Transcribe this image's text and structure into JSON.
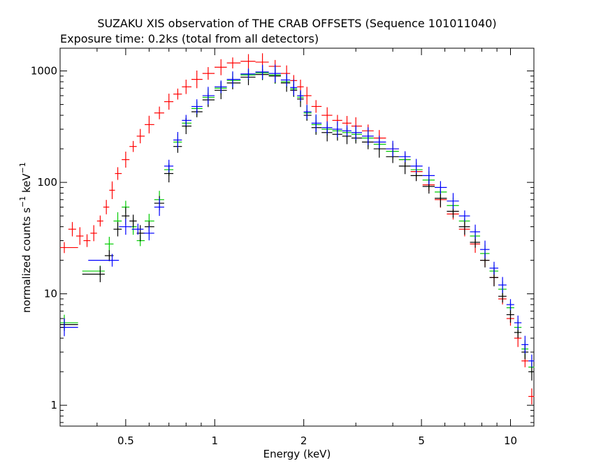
{
  "chart_data": {
    "type": "scatter",
    "title": "SUZAKU XIS observation of THE CRAB OFFSETS (Sequence 101011040)",
    "subtitle": "Exposure time: 0.2ks (total from all detectors)",
    "xlabel": "Energy (keV)",
    "ylabel_main": "normalized counts s",
    "ylabel_exp1": "−1",
    "ylabel_mid": " keV",
    "ylabel_exp2": "−1",
    "x_scale": "log",
    "y_scale": "log",
    "xlim": [
      0.3,
      12
    ],
    "ylim": [
      0.65,
      1600
    ],
    "x_ticks": [
      {
        "value": 0.5,
        "label": "0.5"
      },
      {
        "value": 1,
        "label": "1"
      },
      {
        "value": 2,
        "label": "2"
      },
      {
        "value": 5,
        "label": "5"
      },
      {
        "value": 10,
        "label": "10"
      }
    ],
    "y_ticks": [
      {
        "value": 1,
        "label": "1"
      },
      {
        "value": 10,
        "label": "10"
      },
      {
        "value": 100,
        "label": "100"
      },
      {
        "value": 1000,
        "label": "1000"
      }
    ],
    "grid": false,
    "series": [
      {
        "color": "#ff0000",
        "points": [
          [
            0.31,
            26
          ],
          [
            0.33,
            38
          ],
          [
            0.35,
            33
          ],
          [
            0.37,
            30
          ],
          [
            0.39,
            35
          ],
          [
            0.41,
            45
          ],
          [
            0.43,
            60
          ],
          [
            0.45,
            85
          ],
          [
            0.47,
            120
          ],
          [
            0.5,
            160
          ],
          [
            0.53,
            210
          ],
          [
            0.56,
            260
          ],
          [
            0.6,
            330
          ],
          [
            0.65,
            420
          ],
          [
            0.7,
            530
          ],
          [
            0.75,
            620
          ],
          [
            0.8,
            720
          ],
          [
            0.87,
            840
          ],
          [
            0.95,
            950
          ],
          [
            1.05,
            1080
          ],
          [
            1.15,
            1180
          ],
          [
            1.3,
            1220
          ],
          [
            1.45,
            1200
          ],
          [
            1.6,
            1100
          ],
          [
            1.75,
            950
          ],
          [
            1.85,
            820
          ],
          [
            1.95,
            720
          ],
          [
            2.05,
            600
          ],
          [
            2.2,
            480
          ],
          [
            2.4,
            400
          ],
          [
            2.6,
            360
          ],
          [
            2.8,
            340
          ],
          [
            3.0,
            320
          ],
          [
            3.3,
            290
          ],
          [
            3.6,
            250
          ],
          [
            4.0,
            200
          ],
          [
            4.4,
            160
          ],
          [
            4.8,
            125
          ],
          [
            5.3,
            95
          ],
          [
            5.8,
            70
          ],
          [
            6.4,
            52
          ],
          [
            7.0,
            38
          ],
          [
            7.6,
            28
          ],
          [
            8.2,
            20
          ],
          [
            8.8,
            14
          ],
          [
            9.4,
            9
          ],
          [
            10.0,
            6
          ],
          [
            10.6,
            4
          ],
          [
            11.2,
            2.5
          ],
          [
            11.8,
            1.2
          ]
        ]
      },
      {
        "color": "#00cc00",
        "points": [
          [
            0.31,
            5.5
          ],
          [
            0.41,
            16
          ],
          [
            0.44,
            28
          ],
          [
            0.47,
            45
          ],
          [
            0.5,
            60
          ],
          [
            0.53,
            40
          ],
          [
            0.56,
            30
          ],
          [
            0.6,
            45
          ],
          [
            0.65,
            70
          ],
          [
            0.7,
            130
          ],
          [
            0.75,
            230
          ],
          [
            0.8,
            340
          ],
          [
            0.87,
            460
          ],
          [
            0.95,
            580
          ],
          [
            1.05,
            700
          ],
          [
            1.15,
            820
          ],
          [
            1.3,
            920
          ],
          [
            1.45,
            960
          ],
          [
            1.6,
            920
          ],
          [
            1.75,
            800
          ],
          [
            1.85,
            690
          ],
          [
            1.95,
            580
          ],
          [
            2.05,
            420
          ],
          [
            2.2,
            330
          ],
          [
            2.4,
            300
          ],
          [
            2.6,
            290
          ],
          [
            2.8,
            280
          ],
          [
            3.0,
            270
          ],
          [
            3.3,
            250
          ],
          [
            3.6,
            220
          ],
          [
            4.0,
            190
          ],
          [
            4.4,
            160
          ],
          [
            4.8,
            130
          ],
          [
            5.3,
            105
          ],
          [
            5.8,
            82
          ],
          [
            6.4,
            62
          ],
          [
            7.0,
            45
          ],
          [
            7.6,
            33
          ],
          [
            8.2,
            23
          ],
          [
            8.8,
            16
          ],
          [
            9.4,
            11
          ],
          [
            10.0,
            7.5
          ],
          [
            10.6,
            5
          ],
          [
            11.2,
            3.2
          ],
          [
            11.8,
            2.2
          ]
        ]
      },
      {
        "color": "#000000",
        "points": [
          [
            0.31,
            5.3
          ],
          [
            0.41,
            15
          ],
          [
            0.44,
            22
          ],
          [
            0.47,
            38
          ],
          [
            0.5,
            50
          ],
          [
            0.53,
            45
          ],
          [
            0.56,
            35
          ],
          [
            0.6,
            40
          ],
          [
            0.65,
            65
          ],
          [
            0.7,
            120
          ],
          [
            0.75,
            210
          ],
          [
            0.8,
            320
          ],
          [
            0.87,
            430
          ],
          [
            0.95,
            550
          ],
          [
            1.05,
            670
          ],
          [
            1.15,
            780
          ],
          [
            1.3,
            880
          ],
          [
            1.45,
            930
          ],
          [
            1.6,
            900
          ],
          [
            1.75,
            780
          ],
          [
            1.85,
            670
          ],
          [
            1.95,
            560
          ],
          [
            2.05,
            400
          ],
          [
            2.2,
            310
          ],
          [
            2.4,
            280
          ],
          [
            2.6,
            270
          ],
          [
            2.8,
            260
          ],
          [
            3.0,
            250
          ],
          [
            3.3,
            230
          ],
          [
            3.6,
            200
          ],
          [
            4.0,
            170
          ],
          [
            4.4,
            140
          ],
          [
            4.8,
            115
          ],
          [
            5.3,
            92
          ],
          [
            5.8,
            72
          ],
          [
            6.4,
            55
          ],
          [
            7.0,
            40
          ],
          [
            7.6,
            29
          ],
          [
            8.2,
            20
          ],
          [
            8.8,
            14
          ],
          [
            9.4,
            9.5
          ],
          [
            10.0,
            6.5
          ],
          [
            10.6,
            4.5
          ],
          [
            11.2,
            3
          ],
          [
            11.8,
            2
          ]
        ]
      },
      {
        "color": "#0000ff",
        "points": [
          [
            0.31,
            5.0
          ],
          [
            0.45,
            20
          ],
          [
            0.5,
            40
          ],
          [
            0.55,
            38
          ],
          [
            0.6,
            35
          ],
          [
            0.65,
            60
          ],
          [
            0.7,
            140
          ],
          [
            0.75,
            240
          ],
          [
            0.8,
            360
          ],
          [
            0.87,
            480
          ],
          [
            0.95,
            600
          ],
          [
            1.05,
            720
          ],
          [
            1.15,
            840
          ],
          [
            1.3,
            940
          ],
          [
            1.45,
            980
          ],
          [
            1.6,
            950
          ],
          [
            1.75,
            830
          ],
          [
            1.85,
            710
          ],
          [
            1.95,
            600
          ],
          [
            2.05,
            430
          ],
          [
            2.2,
            340
          ],
          [
            2.4,
            310
          ],
          [
            2.6,
            300
          ],
          [
            2.8,
            290
          ],
          [
            3.0,
            280
          ],
          [
            3.3,
            260
          ],
          [
            3.6,
            230
          ],
          [
            4.0,
            200
          ],
          [
            4.4,
            170
          ],
          [
            4.8,
            140
          ],
          [
            5.3,
            115
          ],
          [
            5.8,
            90
          ],
          [
            6.4,
            68
          ],
          [
            7.0,
            50
          ],
          [
            7.6,
            36
          ],
          [
            8.2,
            25
          ],
          [
            8.8,
            17
          ],
          [
            9.4,
            12
          ],
          [
            10.0,
            8
          ],
          [
            10.6,
            5.5
          ],
          [
            11.2,
            3.5
          ],
          [
            11.8,
            2.5
          ]
        ]
      }
    ]
  }
}
